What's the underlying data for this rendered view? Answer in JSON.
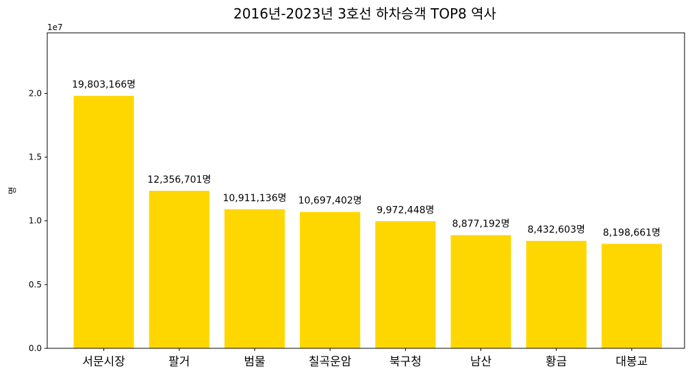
{
  "chart_data": {
    "type": "bar",
    "title": "2016년-2023년 3호선 하차승객 TOP8 역사",
    "xlabel": "",
    "ylabel": "명",
    "y_offset_label": "1e7",
    "categories": [
      "서문시장",
      "팔거",
      "범물",
      "칠곡운암",
      "북구청",
      "남산",
      "황금",
      "대봉교"
    ],
    "values": [
      19803166,
      12356701,
      10911136,
      10697402,
      9972448,
      8877192,
      8432603,
      8198661
    ],
    "data_labels": [
      "19,803,166명",
      "12,356,701명",
      "10,911,136명",
      "10,697,402명",
      "9,972,448명",
      "8,877,192명",
      "8,432,603명",
      "8,198,661명"
    ],
    "ylim": [
      0,
      24750000
    ],
    "yticks": [
      0,
      5000000,
      10000000,
      15000000,
      20000000
    ],
    "ytick_labels": [
      "0.0",
      "0.5",
      "1.0",
      "1.5",
      "2.0"
    ],
    "bar_color": "#ffd700",
    "grid": false
  }
}
